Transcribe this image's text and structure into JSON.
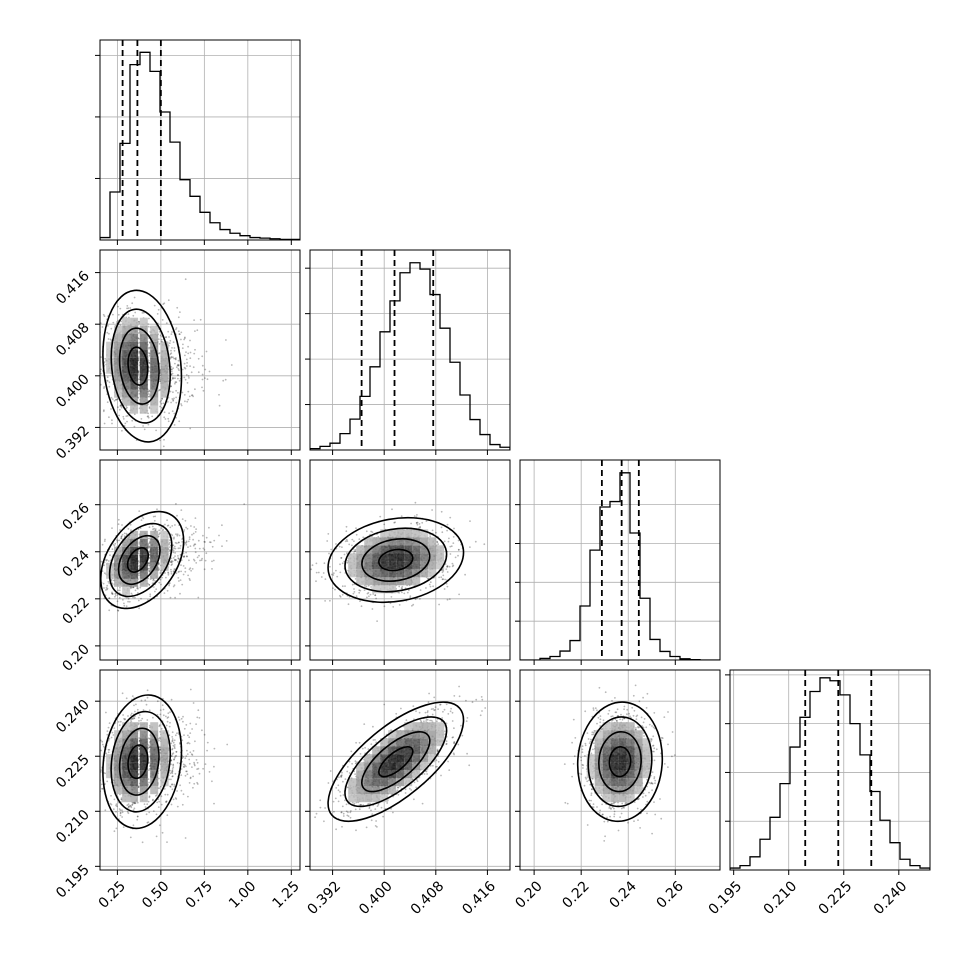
{
  "chart_data": {
    "type": "corner",
    "grid": true,
    "params": [
      {
        "range": [
          0.15,
          1.3
        ],
        "ticks": [
          0.25,
          0.5,
          0.75,
          1.0,
          1.25
        ],
        "tick_labels": [
          "0.25",
          "0.50",
          "0.75",
          "1.00",
          "1.25"
        ]
      },
      {
        "range": [
          0.3885,
          0.4195
        ],
        "ticks": [
          0.392,
          0.4,
          0.408,
          0.416
        ],
        "tick_labels": [
          "0.392",
          "0.400",
          "0.408",
          "0.416"
        ]
      },
      {
        "range": [
          0.194,
          0.279
        ],
        "ticks": [
          0.2,
          0.22,
          0.24,
          0.26
        ],
        "tick_labels": [
          "0.20",
          "0.22",
          "0.24",
          "0.26"
        ]
      },
      {
        "range": [
          0.194,
          0.2485
        ],
        "ticks": [
          0.195,
          0.21,
          0.225,
          0.24
        ],
        "tick_labels": [
          "0.195",
          "0.210",
          "0.225",
          "0.240"
        ]
      }
    ],
    "histograms": [
      {
        "edges_start": 0.15,
        "edges_step": 0.0575,
        "counts": [
          0.04,
          0.78,
          1.57,
          2.85,
          3.05,
          2.74,
          2.08,
          1.59,
          0.98,
          0.71,
          0.45,
          0.28,
          0.17,
          0.11,
          0.07,
          0.04,
          0.03,
          0.02,
          0.01,
          0.01
        ],
        "quantiles": [
          0.28,
          0.365,
          0.5
        ],
        "ylim": [
          0,
          3.25
        ],
        "yticks": [
          1,
          2,
          3
        ]
      },
      {
        "edges_start": 0.3885,
        "edges_step": 0.00155,
        "counts": [
          0.03,
          0.08,
          0.15,
          0.36,
          0.68,
          1.18,
          1.83,
          2.6,
          3.28,
          3.9,
          4.12,
          3.98,
          3.42,
          2.68,
          1.93,
          1.21,
          0.67,
          0.34,
          0.12,
          0.06
        ],
        "quantiles": [
          0.3965,
          0.4016,
          0.4076
        ],
        "ylim": [
          0,
          4.4
        ],
        "yticks": [
          1,
          2,
          3,
          4
        ]
      },
      {
        "edges_start": 0.194,
        "edges_step": 0.00425,
        "counts": [
          0.0,
          0.0,
          0.04,
          0.09,
          0.23,
          0.5,
          1.39,
          2.83,
          3.94,
          4.08,
          4.82,
          3.27,
          1.59,
          0.53,
          0.22,
          0.09,
          0.03,
          0.01,
          0.0,
          0.0
        ],
        "quantiles": [
          0.2288,
          0.2372,
          0.2445
        ],
        "ylim": [
          0,
          5.15
        ],
        "yticks": [
          1,
          2,
          3,
          4
        ]
      },
      {
        "edges_start": 0.194,
        "edges_step": 0.002725,
        "counts": [
          0.04,
          0.09,
          0.27,
          0.63,
          1.08,
          1.77,
          2.52,
          3.13,
          3.66,
          3.94,
          3.88,
          3.59,
          3.0,
          2.36,
          1.61,
          1.02,
          0.56,
          0.22,
          0.09,
          0.04
        ],
        "quantiles": [
          0.2145,
          0.2235,
          0.2325
        ],
        "ylim": [
          0,
          4.1
        ],
        "yticks": [
          1,
          2,
          3,
          4
        ]
      }
    ],
    "pairs": [
      {
        "x": 0,
        "y": 1,
        "mean": [
          0.36,
          0.4015
        ],
        "sd": [
          0.09,
          0.0042
        ],
        "rho": -0.12,
        "n": 1300
      },
      {
        "x": 0,
        "y": 2,
        "mean": [
          0.36,
          0.2365
        ],
        "sd": [
          0.09,
          0.0075
        ],
        "rho": 0.3,
        "n": 1300
      },
      {
        "x": 0,
        "y": 3,
        "mean": [
          0.36,
          0.2235
        ],
        "sd": [
          0.09,
          0.0065
        ],
        "rho": 0.12,
        "n": 1300
      },
      {
        "x": 1,
        "y": 2,
        "mean": [
          0.4018,
          0.2365
        ],
        "sd": [
          0.0042,
          0.0072
        ],
        "rho": 0.18,
        "n": 1300
      },
      {
        "x": 1,
        "y": 3,
        "mean": [
          0.4018,
          0.2235
        ],
        "sd": [
          0.0042,
          0.0065
        ],
        "rho": 0.7,
        "n": 1300
      },
      {
        "x": 2,
        "y": 3,
        "mean": [
          0.2365,
          0.2235
        ],
        "sd": [
          0.0072,
          0.0065
        ],
        "rho": 0.05,
        "n": 1300
      }
    ],
    "contour_levels_sigma": [
      0.5,
      1.0,
      1.5,
      2.0
    ]
  }
}
